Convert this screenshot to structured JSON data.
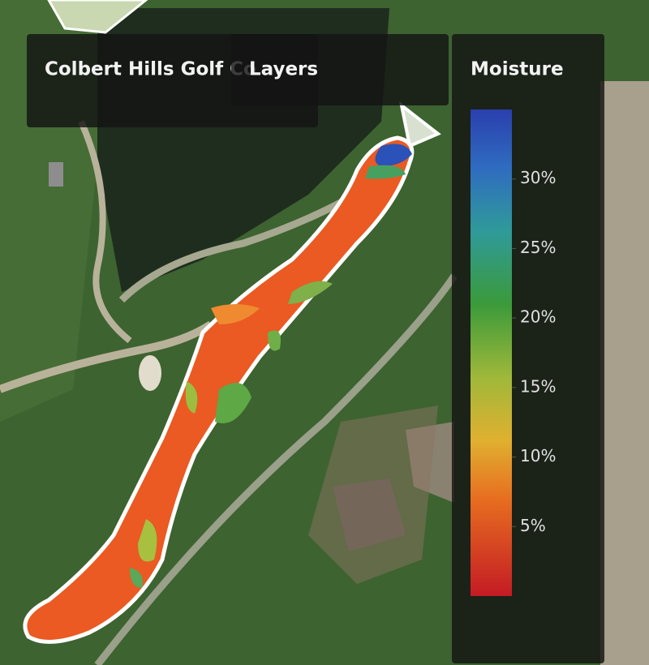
{
  "header": {
    "title": "Colbert Hills Golf Co"
  },
  "layers_panel": {
    "title": "Layers"
  },
  "legend": {
    "title": "Moisture",
    "range": [
      0,
      35
    ],
    "ticks": [
      {
        "value": 30,
        "label": "30%"
      },
      {
        "value": 25,
        "label": "25%"
      },
      {
        "value": 20,
        "label": "20%"
      },
      {
        "value": 15,
        "label": "15%"
      },
      {
        "value": 10,
        "label": "10%"
      },
      {
        "value": 5,
        "label": "5%"
      }
    ]
  }
}
